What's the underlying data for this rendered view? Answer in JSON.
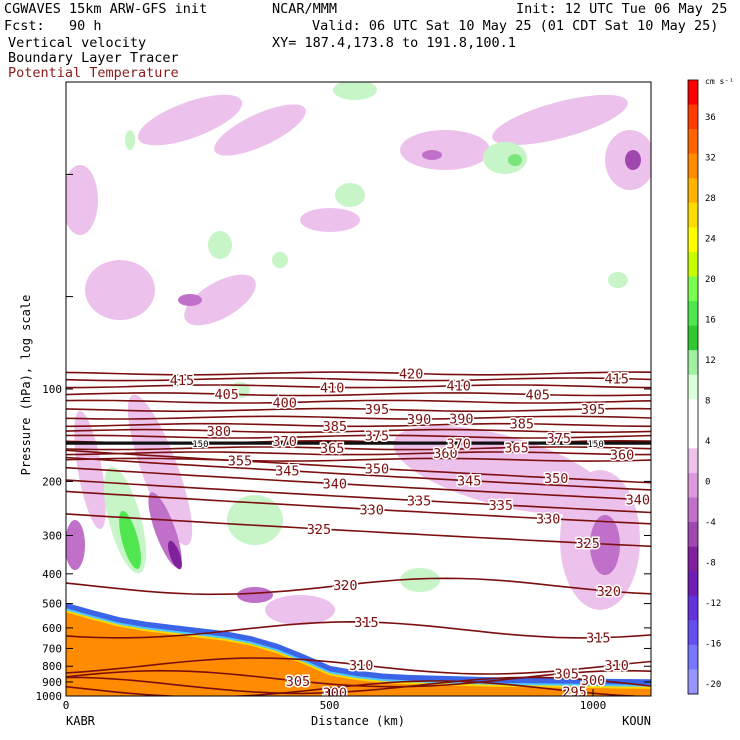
{
  "header": {
    "model": "CGWAVES 15km ARW-GFS init",
    "forecast": "Fcst:   90 h",
    "center": "NCAR/MMM",
    "init": "Init: 12 UTC Tue 06 May 25",
    "valid": "Valid: 06 UTC Sat 10 May 25 (01 CDT Sat 10 May 25)",
    "xy": "XY= 187.4,173.8 to 191.8,100.1",
    "field1": "Vertical velocity",
    "field2": "Boundary Layer Tracer",
    "field3": "Potential Temperature"
  },
  "colors": {
    "theta_line": "#7b0f0f",
    "tropopause_line": "#111111",
    "terrain": "#ff8c00"
  },
  "chart_data": {
    "type": "heatmap",
    "xlabel": "Distance (km)",
    "ylabel": "Pressure (hPa), log scale",
    "xlim": [
      0,
      1110
    ],
    "ylim": [
      1000,
      10
    ],
    "yscale": "log",
    "x_ticks": [
      0,
      500,
      1000
    ],
    "y_ticks": [
      100,
      200,
      300,
      400,
      500,
      600,
      700,
      800,
      900,
      1000
    ],
    "x_endpoints": {
      "left": "KABR",
      "right": "KOUN"
    },
    "colorbar": {
      "unit": "cm s⁻¹",
      "labels": [
        36,
        32,
        28,
        24,
        20,
        16,
        12,
        8,
        4,
        0,
        -4,
        -8,
        -12,
        -16,
        -20
      ],
      "colors": [
        "#ff0000",
        "#ff3c00",
        "#ff6400",
        "#ff8c00",
        "#ffb400",
        "#ffdc00",
        "#ffff00",
        "#c8ff00",
        "#78ff50",
        "#50e650",
        "#32c832",
        "#a0f0a0",
        "#dcffdc",
        "#ffffff",
        "#ffffff",
        "#ecc2ec",
        "#dc9adc",
        "#c070c8",
        "#a048b0",
        "#80209c",
        "#6e1eb4",
        "#6432dc",
        "#6450f0",
        "#7878ff",
        "#9696ff"
      ]
    },
    "theta_contours": [
      {
        "theta": 295,
        "labels": [
          {
            "x": 965,
            "text": "295"
          }
        ]
      },
      {
        "theta": 300,
        "labels": [
          {
            "x": 510,
            "text": "300"
          },
          {
            "x": 1000,
            "text": "300"
          }
        ]
      },
      {
        "theta": 305,
        "labels": [
          {
            "x": 440,
            "text": "305"
          },
          {
            "x": 950,
            "text": "305"
          }
        ]
      },
      {
        "theta": 310,
        "labels": [
          {
            "x": 560,
            "text": "310"
          },
          {
            "x": 1045,
            "text": "310"
          }
        ]
      },
      {
        "theta": 315,
        "labels": [
          {
            "x": 570,
            "text": "315"
          },
          {
            "x": 1010,
            "text": "315"
          }
        ]
      },
      {
        "theta": 320,
        "labels": [
          {
            "x": 530,
            "text": "320"
          },
          {
            "x": 1030,
            "text": "320"
          }
        ]
      },
      {
        "theta": 325,
        "labels": [
          {
            "x": 480,
            "text": "325"
          },
          {
            "x": 990,
            "text": "325"
          }
        ]
      },
      {
        "theta": 330,
        "labels": [
          {
            "x": 580,
            "text": "330"
          },
          {
            "x": 915,
            "text": "330"
          }
        ]
      },
      {
        "theta": 335,
        "labels": [
          {
            "x": 670,
            "text": "335"
          },
          {
            "x": 825,
            "text": "335"
          }
        ]
      },
      {
        "theta": 340,
        "labels": [
          {
            "x": 510,
            "text": "340"
          },
          {
            "x": 1085,
            "text": "340"
          }
        ]
      },
      {
        "theta": 345,
        "labels": [
          {
            "x": 420,
            "text": "345"
          },
          {
            "x": 765,
            "text": "345"
          }
        ]
      },
      {
        "theta": 350,
        "labels": [
          {
            "x": 590,
            "text": "350"
          },
          {
            "x": 930,
            "text": "350"
          }
        ]
      },
      {
        "theta": 355,
        "labels": [
          {
            "x": 330,
            "text": "355"
          }
        ]
      },
      {
        "theta": 360,
        "labels": [
          {
            "x": 720,
            "text": "360"
          },
          {
            "x": 1055,
            "text": "360"
          }
        ]
      },
      {
        "theta": 365,
        "labels": [
          {
            "x": 505,
            "text": "365"
          },
          {
            "x": 855,
            "text": "365"
          }
        ]
      },
      {
        "theta": 370,
        "labels": [
          {
            "x": 415,
            "text": "370"
          },
          {
            "x": 745,
            "text": "370"
          }
        ]
      },
      {
        "theta": 375,
        "labels": [
          {
            "x": 590,
            "text": "375"
          },
          {
            "x": 935,
            "text": "375"
          }
        ]
      },
      {
        "theta": 380,
        "labels": [
          {
            "x": 290,
            "text": "380"
          }
        ]
      },
      {
        "theta": 385,
        "labels": [
          {
            "x": 510,
            "text": "385"
          },
          {
            "x": 865,
            "text": "385"
          }
        ]
      },
      {
        "theta": 390,
        "labels": [
          {
            "x": 670,
            "text": "390"
          },
          {
            "x": 750,
            "text": "390"
          }
        ]
      },
      {
        "theta": 395,
        "labels": [
          {
            "x": 590,
            "text": "395"
          },
          {
            "x": 1000,
            "text": "395"
          }
        ]
      },
      {
        "theta": 400,
        "labels": [
          {
            "x": 415,
            "text": "400"
          }
        ]
      },
      {
        "theta": 405,
        "labels": [
          {
            "x": 305,
            "text": "405"
          },
          {
            "x": 895,
            "text": "405"
          }
        ]
      },
      {
        "theta": 410,
        "labels": [
          {
            "x": 505,
            "text": "410"
          },
          {
            "x": 745,
            "text": "410"
          }
        ]
      },
      {
        "theta": 415,
        "labels": [
          {
            "x": 220,
            "text": "415"
          },
          {
            "x": 1045,
            "text": "415"
          }
        ]
      },
      {
        "theta": 420,
        "labels": [
          {
            "x": 655,
            "text": "420"
          }
        ]
      }
    ],
    "pv_labels": [
      {
        "x": 255,
        "text": "150"
      },
      {
        "x": 1005,
        "text": "150"
      }
    ],
    "terrain": [
      [
        0,
        530
      ],
      [
        50,
        560
      ],
      [
        100,
        590
      ],
      [
        150,
        610
      ],
      [
        200,
        625
      ],
      [
        250,
        640
      ],
      [
        300,
        655
      ],
      [
        350,
        680
      ],
      [
        400,
        720
      ],
      [
        450,
        780
      ],
      [
        500,
        850
      ],
      [
        550,
        880
      ],
      [
        600,
        900
      ],
      [
        650,
        910
      ],
      [
        700,
        915
      ],
      [
        750,
        920
      ],
      [
        800,
        925
      ],
      [
        850,
        928
      ],
      [
        900,
        930
      ],
      [
        950,
        932
      ],
      [
        1000,
        935
      ],
      [
        1050,
        938
      ],
      [
        1110,
        940
      ]
    ]
  }
}
